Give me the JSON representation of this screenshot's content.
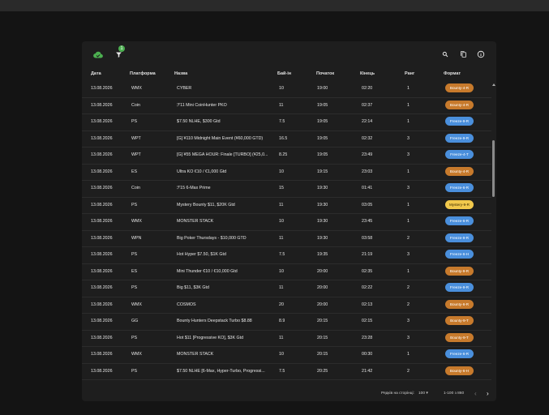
{
  "colors": {
    "bounty": "#c77a2c",
    "freeze": "#4a8fdc",
    "mystery": "#f2c94c",
    "accent_green": "#4caf50"
  },
  "toolbar": {
    "filter_badge": "1",
    "icons": [
      "cloud-icon",
      "filter-icon",
      "search-icon",
      "copy-icon",
      "info-icon"
    ]
  },
  "table": {
    "headers": [
      "Дата",
      "Платформа",
      "Назва",
      "Бай-ін",
      "Початок",
      "Кінець",
      "Ранг",
      "Формат"
    ],
    "rows": [
      {
        "date": "13.08.2026",
        "platform": "WMX",
        "name": "CYBER",
        "buyin": "10",
        "start": "19:00",
        "end": "02:20",
        "rank": "1",
        "format": "Bounty-4-R",
        "kind": "bounty"
      },
      {
        "date": "13.08.2026",
        "platform": "Coin",
        "name": "ℱ11 Mini CoinHunter PKO",
        "buyin": "11",
        "start": "19:05",
        "end": "02:37",
        "rank": "1",
        "format": "Bounty-4-R",
        "kind": "bounty"
      },
      {
        "date": "13.08.2026",
        "platform": "PS",
        "name": "$7.50 NLHE, $300 Gtd",
        "buyin": "7.5",
        "start": "19:05",
        "end": "22:14",
        "rank": "1",
        "format": "Freeze-9-R",
        "kind": "freeze"
      },
      {
        "date": "13.08.2026",
        "platform": "WPT",
        "name": "[G] ¥110 Midnight Main Event (¥60,000 GTD)",
        "buyin": "16.5",
        "start": "19:05",
        "end": "02:32",
        "rank": "3",
        "format": "Freeze-9-R",
        "kind": "freeze"
      },
      {
        "date": "13.08.2026",
        "platform": "WPT",
        "name": "[G] ¥55 MEGA HOUR: Finale [TURBO] (¥25,0...",
        "buyin": "8.25",
        "start": "19:05",
        "end": "23:49",
        "rank": "3",
        "format": "Freeze-4-T",
        "kind": "freeze"
      },
      {
        "date": "13.08.2026",
        "platform": "ES",
        "name": "Ultra KO €10 / €1,000 Gtd",
        "buyin": "10",
        "start": "19:15",
        "end": "23:03",
        "rank": "1",
        "format": "Bounty-4-R",
        "kind": "bounty"
      },
      {
        "date": "13.08.2026",
        "platform": "Coin",
        "name": "ℱ15 6-Max Prime",
        "buyin": "15",
        "start": "19:30",
        "end": "01:41",
        "rank": "3",
        "format": "Freeze-6-R",
        "kind": "freeze"
      },
      {
        "date": "13.08.2026",
        "platform": "PS",
        "name": "Mystery Bounty $11, $20K Gtd",
        "buyin": "11",
        "start": "19:30",
        "end": "03:05",
        "rank": "1",
        "format": "Mystery-9-R",
        "kind": "mystery"
      },
      {
        "date": "13.08.2026",
        "platform": "WMX",
        "name": "MONSTER STACK",
        "buyin": "10",
        "start": "19:30",
        "end": "23:45",
        "rank": "1",
        "format": "Freeze-6-R",
        "kind": "freeze"
      },
      {
        "date": "13.08.2026",
        "platform": "WPN",
        "name": "Big Poker Thursdays - $10,000 GTD",
        "buyin": "11",
        "start": "19:30",
        "end": "03:58",
        "rank": "2",
        "format": "Freeze-9-R",
        "kind": "freeze"
      },
      {
        "date": "13.08.2026",
        "platform": "PS",
        "name": "Hot Hyper $7.50, $1K Gtd",
        "buyin": "7.5",
        "start": "19:35",
        "end": "21:19",
        "rank": "3",
        "format": "Freeze-6-H",
        "kind": "freeze"
      },
      {
        "date": "13.08.2026",
        "platform": "ES",
        "name": "Mini Thunder €10 / €10,000 Gtd",
        "buyin": "10",
        "start": "20:00",
        "end": "02:35",
        "rank": "1",
        "format": "Bounty-9-R",
        "kind": "bounty"
      },
      {
        "date": "13.08.2026",
        "platform": "PS",
        "name": "Big $11, $3K Gtd",
        "buyin": "11",
        "start": "20:00",
        "end": "02:22",
        "rank": "2",
        "format": "Freeze-9-R",
        "kind": "freeze"
      },
      {
        "date": "13.08.2026",
        "platform": "WMX",
        "name": "COSMOS",
        "buyin": "20",
        "start": "20:00",
        "end": "02:13",
        "rank": "2",
        "format": "Bounty-6-R",
        "kind": "bounty"
      },
      {
        "date": "13.08.2026",
        "platform": "GG",
        "name": "Bounty Hunters Deepstack Turbo $8.88",
        "buyin": "8.9",
        "start": "20:15",
        "end": "02:15",
        "rank": "3",
        "format": "Bounty-9-T",
        "kind": "bounty"
      },
      {
        "date": "13.08.2026",
        "platform": "PS",
        "name": "Hot $11 [Progressive KO], $3K Gtd",
        "buyin": "11",
        "start": "20:15",
        "end": "23:28",
        "rank": "3",
        "format": "Bounty-9-T",
        "kind": "bounty"
      },
      {
        "date": "13.08.2026",
        "platform": "WMX",
        "name": "MONSTER STACK",
        "buyin": "10",
        "start": "20:15",
        "end": "00:30",
        "rank": "1",
        "format": "Freeze-6-R",
        "kind": "freeze"
      },
      {
        "date": "13.08.2026",
        "platform": "PS",
        "name": "$7.50 NLHE [6-Max, Hyper-Turbo, Progressi...",
        "buyin": "7.5",
        "start": "20:25",
        "end": "21:42",
        "rank": "2",
        "format": "Bounty-6-H",
        "kind": "bounty"
      }
    ]
  },
  "footer": {
    "rows_per_page_label": "Рядків на сторінці:",
    "rows_per_page_value": "100",
    "range": "1-100 з 860"
  }
}
